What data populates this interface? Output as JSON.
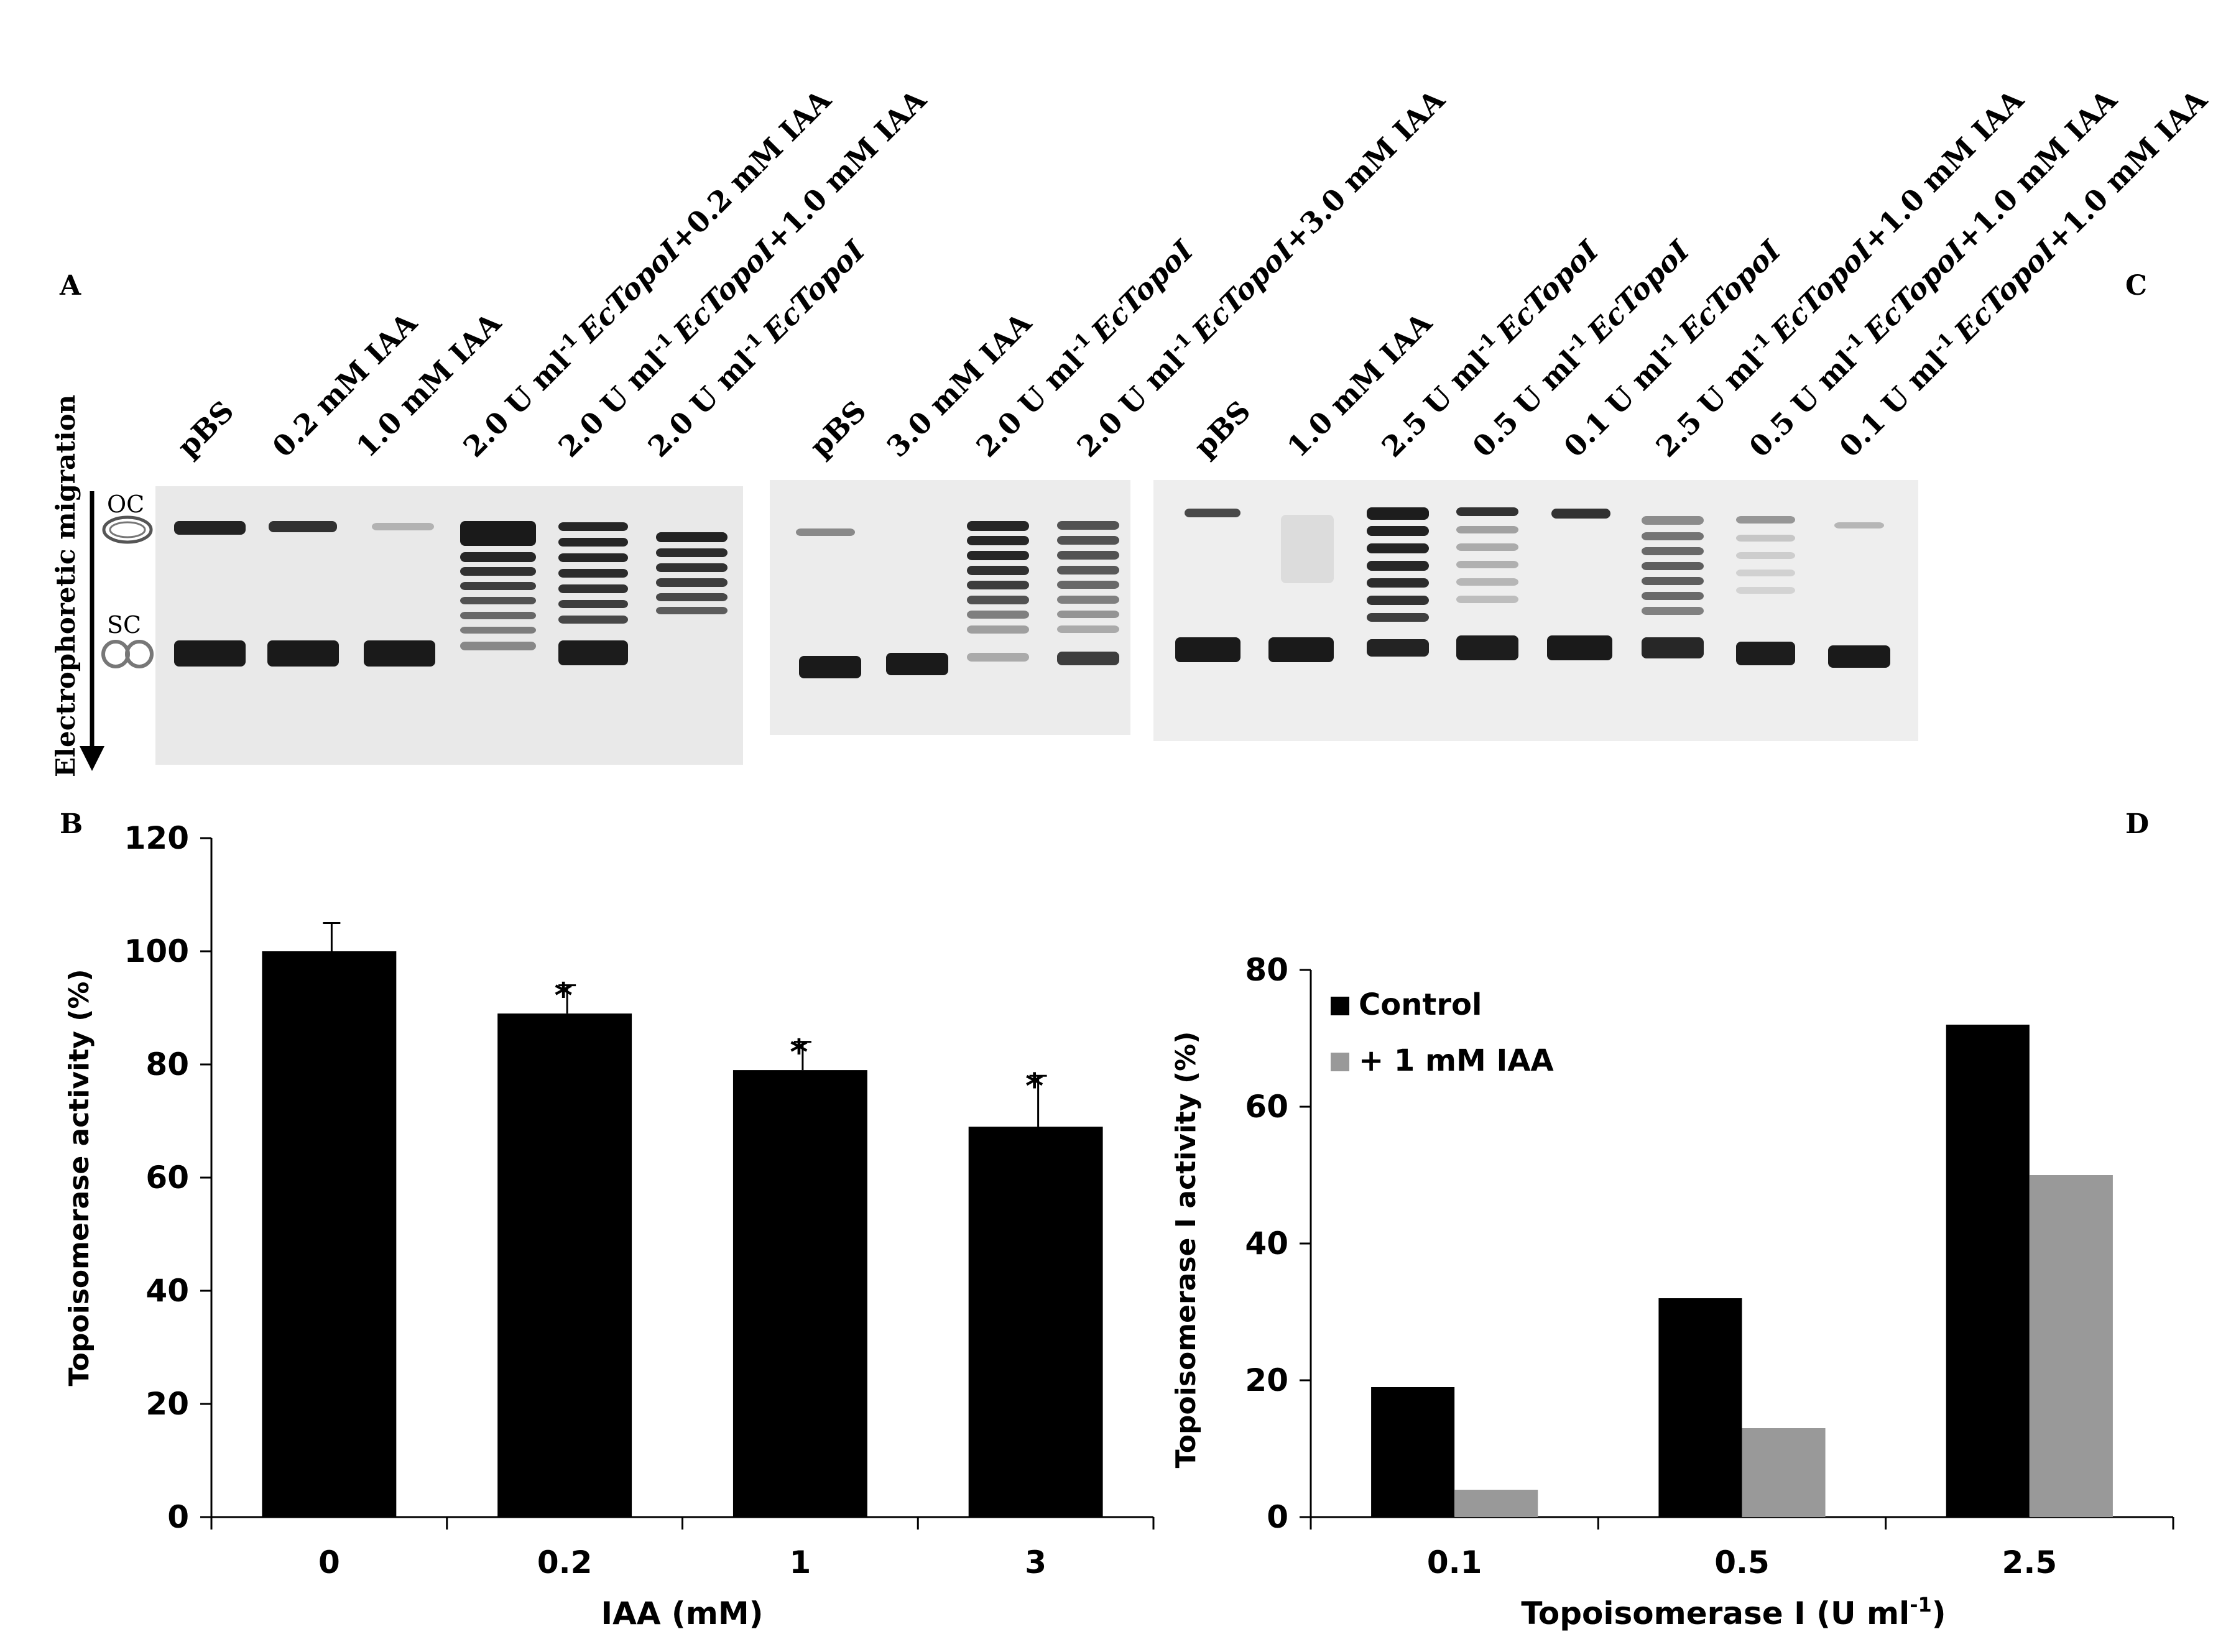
{
  "panels": {
    "a": "A",
    "b": "B",
    "c": "C",
    "d": "D"
  },
  "gel_axis": {
    "migration_label": "Electrophoretic migration",
    "oc_label": "OC",
    "sc_label": "SC"
  },
  "gel_lanes": {
    "gel1": [
      {
        "label": "pBS"
      },
      {
        "label": "0.2 mM IAA"
      },
      {
        "label": "1.0 mM IAA"
      },
      {
        "prefix": "2.0 U ml",
        "sup": "-1",
        "enzyme": "EcTopoI",
        "suffix": "+0.2 mM IAA"
      },
      {
        "prefix": "2.0 U ml",
        "sup": "-1",
        "enzyme": "EcTopoI",
        "suffix": "+1.0 mM IAA"
      },
      {
        "prefix": "2.0 U ml",
        "sup": "-1",
        "enzyme": "EcTopoI",
        "suffix": ""
      }
    ],
    "gel2": [
      {
        "label": "pBS"
      },
      {
        "label": "3.0 mM IAA"
      },
      {
        "prefix": "2.0 U ml",
        "sup": "-1",
        "enzyme": "EcTopoI",
        "suffix": ""
      },
      {
        "prefix": "2.0 U ml",
        "sup": "-1",
        "enzyme": "EcTopoI",
        "suffix": "+3.0 mM IAA"
      }
    ],
    "gel3": [
      {
        "label": "pBS"
      },
      {
        "label": "1.0 mM IAA"
      },
      {
        "prefix": "2.5 U ml",
        "sup": "-1",
        "enzyme": "EcTopoI",
        "suffix": ""
      },
      {
        "prefix": "0.5 U ml",
        "sup": "-1",
        "enzyme": "EcTopoI",
        "suffix": ""
      },
      {
        "prefix": "0.1 U ml",
        "sup": "-1",
        "enzyme": "EcTopoI",
        "suffix": ""
      },
      {
        "prefix": "2.5 U ml",
        "sup": "-1",
        "enzyme": "EcTopoI",
        "suffix": "+1.0 mM IAA"
      },
      {
        "prefix": "0.5 U ml",
        "sup": "-1",
        "enzyme": "EcTopoI",
        "suffix": "+1.0 mM IAA"
      },
      {
        "prefix": "0.1 U ml",
        "sup": "-1",
        "enzyme": "EcTopoI",
        "suffix": "+1.0 mM IAA"
      }
    ]
  },
  "colors": {
    "bar_dark": "#000000",
    "bar_gray": "#999999",
    "gel_bg": "#e9e9e9",
    "band": "#111111"
  },
  "chart_data": [
    {
      "type": "bar",
      "panel": "B",
      "title": "",
      "xlabel": "IAA (mM)",
      "ylabel": "Topoisomerase activity (%)",
      "categories": [
        "0",
        "0.2",
        "1",
        "3"
      ],
      "values": [
        100,
        89,
        79,
        69
      ],
      "errors": [
        5,
        5,
        5,
        9
      ],
      "significance": [
        "",
        "*",
        "*",
        "*"
      ],
      "ylim": [
        0,
        120
      ],
      "yticks": [
        "0",
        "20",
        "40",
        "60",
        "80",
        "100",
        "120"
      ],
      "grid": false
    },
    {
      "type": "bar",
      "panel": "D",
      "title": "",
      "xlabel_main": "Topoisomerase I (U ml",
      "xlabel_sup": "-1",
      "xlabel_end": ")",
      "ylabel": "Topoisomerase I activity (%)",
      "categories": [
        "0.1",
        "0.5",
        "2.5"
      ],
      "series": [
        {
          "name": "Control",
          "values": [
            19,
            32,
            72
          ]
        },
        {
          "name": "+ 1 mM IAA",
          "values": [
            4,
            13,
            50
          ]
        }
      ],
      "ylim": [
        0,
        80
      ],
      "yticks": [
        "0",
        "20",
        "40",
        "60",
        "80"
      ],
      "legend": "top-left",
      "grid": false
    }
  ]
}
